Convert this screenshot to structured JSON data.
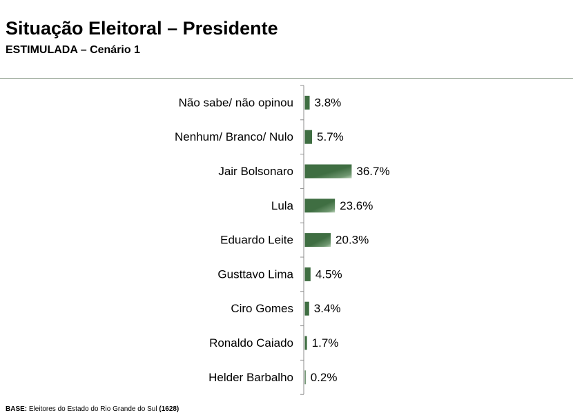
{
  "header": {
    "title": "Situação Eleitoral – Presidente",
    "subtitle": "ESTIMULADA – Cenário 1"
  },
  "chart_data": {
    "type": "bar",
    "orientation": "horizontal",
    "categories": [
      "Não sabe/ não opinou",
      "Nenhum/ Branco/ Nulo",
      "Jair Bolsonaro",
      "Lula",
      "Eduardo Leite",
      "Gusttavo Lima",
      "Ciro Gomes",
      "Ronaldo Caiado",
      "Helder Barbalho"
    ],
    "values": [
      3.8,
      5.7,
      36.7,
      23.6,
      20.3,
      4.5,
      3.4,
      1.7,
      0.2
    ],
    "value_labels": [
      "3.8%",
      "5.7%",
      "36.7%",
      "23.6%",
      "20.3%",
      "4.5%",
      "3.4%",
      "1.7%",
      "0.2%"
    ],
    "xlim": [
      0,
      100
    ],
    "bar_color": "#3f6e42",
    "bar_highlight": "#a9c4a8"
  },
  "footer": {
    "label": "BASE:",
    "text": " Eleitores do Estado do Rio Grande do Sul ",
    "count": "(1628)"
  }
}
